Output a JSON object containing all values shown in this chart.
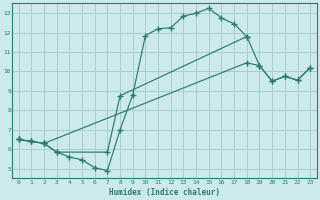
{
  "xlabel": "Humidex (Indice chaleur)",
  "background_color": "#cce9ec",
  "grid_color": "#aacdd2",
  "line_color": "#2d7a6e",
  "xlim": [
    -0.5,
    23.5
  ],
  "ylim": [
    4.5,
    13.5
  ],
  "xticks": [
    0,
    1,
    2,
    3,
    4,
    5,
    6,
    7,
    8,
    9,
    10,
    11,
    12,
    13,
    14,
    15,
    16,
    17,
    18,
    19,
    20,
    21,
    22,
    23
  ],
  "yticks": [
    5,
    6,
    7,
    8,
    9,
    10,
    11,
    12,
    13
  ],
  "line1_x": [
    0,
    1,
    2,
    3,
    4,
    5,
    6,
    7,
    8,
    9,
    10,
    11,
    12,
    13,
    14,
    15,
    16,
    17,
    18
  ],
  "line1_y": [
    6.5,
    6.4,
    6.3,
    5.85,
    5.6,
    5.45,
    5.05,
    4.9,
    7.0,
    8.8,
    11.85,
    12.2,
    12.25,
    12.85,
    13.0,
    13.25,
    12.75,
    12.45,
    11.8
  ],
  "line2_x": [
    0,
    1,
    2,
    3,
    7,
    8,
    18,
    19,
    20,
    21,
    22,
    23
  ],
  "line2_y": [
    6.5,
    6.4,
    6.3,
    5.85,
    5.85,
    8.75,
    11.8,
    10.3,
    9.5,
    9.75,
    9.55,
    10.2
  ],
  "line3_x": [
    0,
    1,
    2,
    18,
    19,
    20,
    21,
    22,
    23
  ],
  "line3_y": [
    6.5,
    6.4,
    6.3,
    10.45,
    10.3,
    9.5,
    9.75,
    9.55,
    10.2
  ]
}
